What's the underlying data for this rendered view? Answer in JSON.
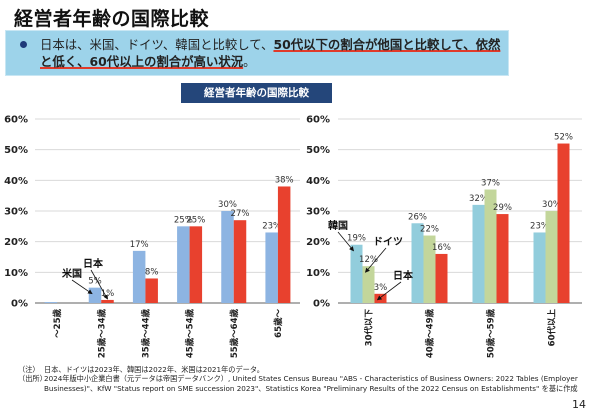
{
  "page": {
    "title": "経営者年齢の国際比較",
    "summary": {
      "plain_start": "日本は、米国、ドイツ、韓国と比較して、",
      "emphasis": "50代以下の割合が他国と比較して、依然と低く、60代以上の割合が高い状況",
      "plain_end": "。"
    },
    "chart_banner": "経営者年齢の国際比較",
    "notes": {
      "note_label": "（注）",
      "note_text": "日本、ドイツは2023年、韓国は2022年、米国は2021年のデータ。",
      "source_label": "（出所）",
      "source_text": "2024年版中小企業白書（元データは帝国データバンク）, United States Census Bureau \"ABS - Characteristics of Business Owners: 2022 Tables (Employer Businesses)\"、KfW \"Status report on SME succession 2023\"、Statistics Korea \"Preliminary Results of the 2022 Census on Establishments\" を基に作成"
    },
    "page_number": "14"
  },
  "chart_data": [
    {
      "type": "bar",
      "title": "",
      "xlabel": "",
      "ylabel": "",
      "ylim": [
        0,
        60
      ],
      "yticks": [
        "0%",
        "10%",
        "20%",
        "30%",
        "40%",
        "50%",
        "60%"
      ],
      "grid": true,
      "categories": [
        "～25歳",
        "25歳～34歳",
        "35歳～44歳",
        "45歳～54歳",
        "55歳～64歳",
        "65歳～"
      ],
      "series": [
        {
          "name": "米国",
          "color": "#8db4e2",
          "values": [
            0.3,
            5,
            17,
            25,
            30,
            23
          ],
          "labels": [
            "",
            "5%",
            "17%",
            "25%",
            "30%",
            "23%"
          ]
        },
        {
          "name": "日本",
          "color": "#e8412e",
          "values": [
            0,
            1,
            8,
            25,
            27,
            38
          ],
          "labels": [
            "",
            "1%",
            "8%",
            "25%",
            "27%",
            "38%"
          ]
        }
      ],
      "annotations": [
        {
          "text": "米国",
          "series": 0,
          "category": 1
        },
        {
          "text": "日本",
          "series": 1,
          "category": 1
        }
      ]
    },
    {
      "type": "bar",
      "title": "",
      "xlabel": "",
      "ylabel": "",
      "ylim": [
        0,
        60
      ],
      "yticks": [
        "0%",
        "10%",
        "20%",
        "30%",
        "40%",
        "50%",
        "60%"
      ],
      "grid": true,
      "categories": [
        "30代以下",
        "40歳～49歳",
        "50歳～59歳",
        "60代以上"
      ],
      "series": [
        {
          "name": "韓国",
          "color": "#92cddc",
          "values": [
            19,
            26,
            32,
            23
          ],
          "labels": [
            "19%",
            "26%",
            "32%",
            "23%"
          ]
        },
        {
          "name": "ドイツ",
          "color": "#c3d69b",
          "values": [
            12,
            22,
            37,
            30
          ],
          "labels": [
            "12%",
            "22%",
            "37%",
            "30%"
          ]
        },
        {
          "name": "日本",
          "color": "#e8412e",
          "values": [
            3,
            16,
            29,
            52
          ],
          "labels": [
            "3%",
            "16%",
            "29%",
            "52%"
          ]
        }
      ],
      "annotations": [
        {
          "text": "韓国",
          "series": 0,
          "category": 0
        },
        {
          "text": "ドイツ",
          "series": 1,
          "category": 0
        },
        {
          "text": "日本",
          "series": 2,
          "category": 0
        }
      ]
    }
  ]
}
